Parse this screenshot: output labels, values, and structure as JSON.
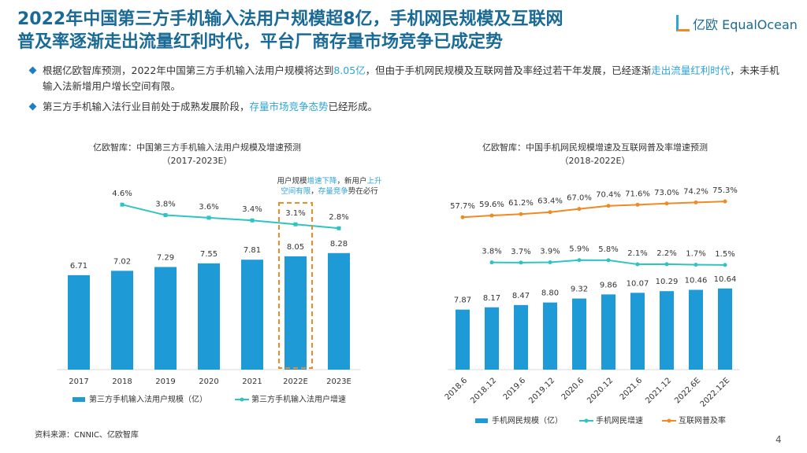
{
  "header": {
    "title_lines": [
      "2022年中国第三方手机输入法用户规模超8亿，手机网民规模及互联网",
      "普及率逐渐走出流量红利时代，平台厂商存量市场竞争已成定势"
    ],
    "logo_cn": "亿欧",
    "logo_en": "EqualOcean"
  },
  "bullets": [
    {
      "segments": [
        {
          "text": "根据亿欧智库预测，2022年中国第三方手机输入法用户规模将达到",
          "color": "#333333"
        },
        {
          "text": "8.05亿",
          "color": "#2ea3d8"
        },
        {
          "text": "，但由于手机网民规模及互联网普及率经过若干年发展，已经逐渐",
          "color": "#333333"
        },
        {
          "text": "走出流量红利时代",
          "color": "#2ea3d8"
        },
        {
          "text": "，未来手机输入法新增用户增长空间有限。",
          "color": "#333333"
        }
      ]
    },
    {
      "segments": [
        {
          "text": "第三方手机输入法行业目前处于成熟发展阶段，",
          "color": "#333333"
        },
        {
          "text": "存量市场竞争态势",
          "color": "#2ea3d8"
        },
        {
          "text": "已经形成。",
          "color": "#333333"
        }
      ]
    }
  ],
  "chart_data": [
    {
      "type": "combo",
      "title": "亿欧智库：中国第三方手机输入法用户规模及增速预测",
      "subtitle": "（2017-2023E）",
      "categories": [
        "2017",
        "2018",
        "2019",
        "2020",
        "2021",
        "2022E",
        "2023E"
      ],
      "series": [
        {
          "name": "第三方手机输入法用户规模（亿）",
          "type": "bar",
          "color": "#1e9bd7",
          "values": [
            6.71,
            7.02,
            7.29,
            7.55,
            7.81,
            8.05,
            8.28
          ]
        },
        {
          "name": "第三方手机输入法用户增速",
          "type": "line",
          "color": "#2ec4c4",
          "values": [
            null,
            4.6,
            3.8,
            3.6,
            3.4,
            3.1,
            2.8
          ],
          "value_labels": [
            null,
            "4.6%",
            "3.8%",
            "3.6%",
            "3.4%",
            "3.1%",
            "2.8%"
          ]
        }
      ],
      "highlight_index": 5,
      "highlight_color": "#f08a24",
      "annotation": [
        [
          {
            "text": "用户规模",
            "color": "#333333"
          },
          {
            "text": "增速下降",
            "color": "#2ea3d8"
          },
          {
            "text": "，新用户",
            "color": "#333333"
          },
          {
            "text": "上升",
            "color": "#2ea3d8"
          }
        ],
        [
          {
            "text": "空间有限",
            "color": "#2ea3d8"
          },
          {
            "text": "，",
            "color": "#333333"
          },
          {
            "text": "存量竞争",
            "color": "#2ea3d8"
          },
          {
            "text": "势在必行",
            "color": "#333333"
          }
        ]
      ]
    },
    {
      "type": "combo",
      "title": "亿欧智库：中国手机网民规模增速及互联网普及率增速预测",
      "subtitle": "（2018-2022E）",
      "categories": [
        "2018.6",
        "2018.12",
        "2019.6",
        "2019.12",
        "2020.6",
        "2020.12",
        "2021.6",
        "2021.12",
        "2022.6E",
        "2022.12E"
      ],
      "series": [
        {
          "name": "手机网民规模（亿）",
          "type": "bar",
          "color": "#1e9bd7",
          "values": [
            7.87,
            8.17,
            8.47,
            8.8,
            9.32,
            9.86,
            10.07,
            10.29,
            10.46,
            10.64
          ],
          "value_labels": [
            "7.87",
            "8.17",
            "8.47",
            "8.80",
            "9.32",
            "9.86",
            "10.07",
            "10.29",
            "10.46",
            "10.64"
          ]
        },
        {
          "name": "手机网民增速",
          "type": "line",
          "color": "#2ec4c4",
          "values": [
            null,
            3.8,
            3.7,
            3.9,
            5.9,
            5.8,
            2.1,
            2.2,
            1.7,
            1.5
          ],
          "value_labels": [
            null,
            "3.8%",
            "3.7%",
            "3.9%",
            "5.9%",
            "5.8%",
            "2.1%",
            "2.2%",
            "1.7%",
            "1.5%"
          ]
        },
        {
          "name": "互联网普及率",
          "type": "line",
          "color": "#f08a24",
          "values": [
            57.7,
            59.6,
            61.2,
            63.4,
            67.0,
            70.4,
            71.6,
            73.0,
            74.2,
            75.3
          ],
          "value_labels": [
            "57.7%",
            "59.6%",
            "61.2%",
            "63.4%",
            "67.0%",
            "70.4%",
            "71.6%",
            "73.0%",
            "74.2%",
            "75.3%"
          ]
        }
      ]
    }
  ],
  "source": "资料来源：CNNIC、亿欧智库",
  "page_number": 4
}
